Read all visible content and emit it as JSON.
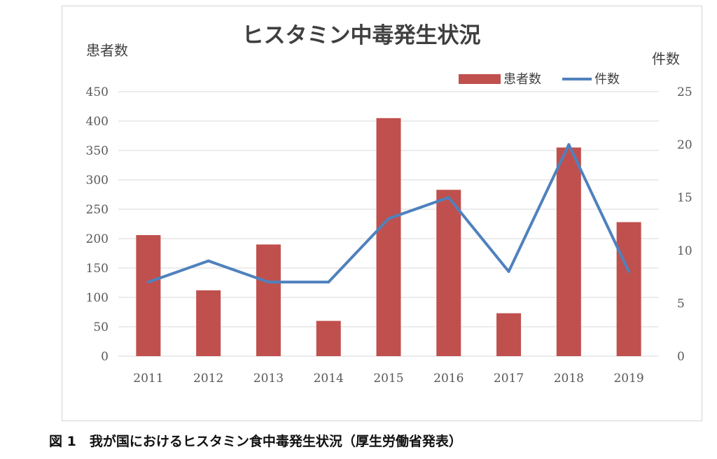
{
  "chart_data": {
    "type": "bar+line",
    "title": "ヒスタミン中毒発生状況",
    "categories": [
      "2011",
      "2012",
      "2013",
      "2014",
      "2015",
      "2016",
      "2017",
      "2018",
      "2019"
    ],
    "series": [
      {
        "name": "患者数",
        "type": "bar",
        "axis": "left",
        "color": "#c0504d",
        "values": [
          206,
          112,
          190,
          60,
          405,
          283,
          73,
          355,
          228
        ]
      },
      {
        "name": "件数",
        "type": "line",
        "axis": "right",
        "color": "#4f81bd",
        "values": [
          7,
          9,
          7,
          7,
          13,
          15,
          8,
          20,
          8
        ]
      }
    ],
    "ylabel": "患者数",
    "y2label": "件数",
    "ylim": [
      0,
      450
    ],
    "yticks": [
      "0",
      "50",
      "100",
      "150",
      "200",
      "250",
      "300",
      "350",
      "400",
      "450"
    ],
    "y2lim": [
      0,
      25
    ],
    "y2ticks": [
      "0",
      "5",
      "10",
      "15",
      "20",
      "25"
    ],
    "grid": true,
    "legend": "top-right"
  },
  "caption": "図 1　我が国におけるヒスタミン食中毒発生状況（厚生労働省発表）"
}
